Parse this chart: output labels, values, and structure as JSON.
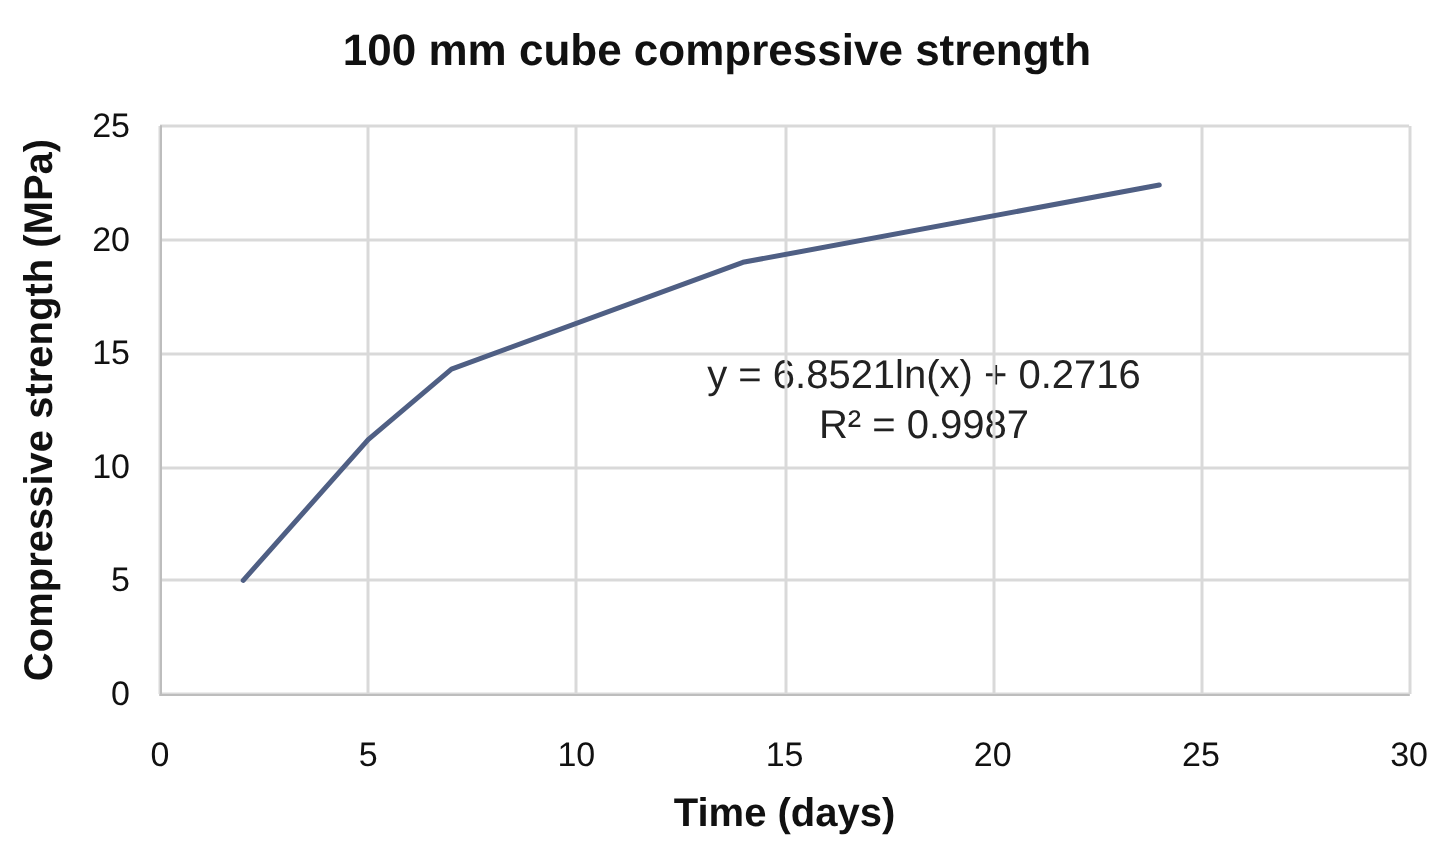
{
  "chart_data": {
    "type": "line",
    "title": "100 mm cube compressive strength",
    "xlabel": "Time (days)",
    "ylabel": "Compressive strength (MPa)",
    "x": [
      2,
      5,
      7,
      14,
      24
    ],
    "series": [
      {
        "color": "#4f5f84",
        "values": [
          5,
          11.2,
          14.3,
          19.0,
          22.4
        ]
      }
    ],
    "xlim": [
      0,
      30
    ],
    "xticks": [
      0,
      5,
      10,
      15,
      20,
      25,
      30
    ],
    "ylim": [
      0,
      25
    ],
    "yticks": [
      0,
      5,
      10,
      15,
      20,
      25
    ],
    "grid": true,
    "marker": "none",
    "line_style": "solid",
    "annotations": [
      "y = 6.8521ln(x) + 0.2716",
      "R² = 0.9987"
    ]
  }
}
